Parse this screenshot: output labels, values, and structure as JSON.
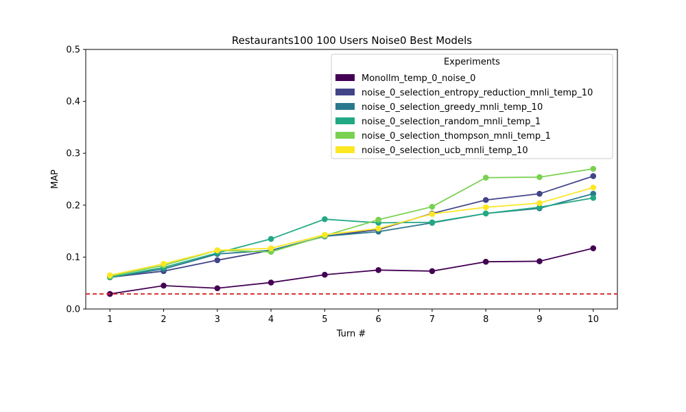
{
  "chart_data": {
    "type": "line",
    "title": "Restaurants100 100 Users Noise0 Best Models",
    "xlabel": "Turn #",
    "ylabel": "MAP",
    "x": [
      1,
      2,
      3,
      4,
      5,
      6,
      7,
      8,
      9,
      10
    ],
    "ylim": [
      0,
      0.5
    ],
    "yticks": [
      "0.0",
      "0.1",
      "0.2",
      "0.3",
      "0.4",
      "0.5"
    ],
    "grid": false,
    "legend": {
      "title": "Experiments",
      "placement": "top-right"
    },
    "baseline": {
      "value": 0.029,
      "color": "#d62728",
      "style": "dashed"
    },
    "series": [
      {
        "name": "Monollm_temp_0_noise_0",
        "color": "#440154",
        "values": [
          0.029,
          0.045,
          0.04,
          0.051,
          0.066,
          0.075,
          0.073,
          0.091,
          0.092,
          0.117
        ]
      },
      {
        "name": "noise_0_selection_entropy_reduction_mnli_temp_10",
        "color": "#414487",
        "values": [
          0.061,
          0.073,
          0.094,
          0.113,
          0.14,
          0.153,
          0.184,
          0.21,
          0.222,
          0.256
        ]
      },
      {
        "name": "noise_0_selection_greedy_mnli_temp_10",
        "color": "#2a788e",
        "values": [
          0.061,
          0.077,
          0.106,
          0.113,
          0.14,
          0.149,
          0.166,
          0.184,
          0.194,
          0.222
        ]
      },
      {
        "name": "noise_0_selection_random_mnli_temp_1",
        "color": "#22a884",
        "values": [
          0.061,
          0.08,
          0.108,
          0.135,
          0.173,
          0.166,
          0.167,
          0.184,
          0.196,
          0.214
        ]
      },
      {
        "name": "noise_0_selection_thompson_mnli_temp_1",
        "color": "#7ad151",
        "values": [
          0.063,
          0.084,
          0.113,
          0.11,
          0.141,
          0.172,
          0.197,
          0.253,
          0.254,
          0.27
        ]
      },
      {
        "name": "noise_0_selection_ucb_mnli_temp_10",
        "color": "#fde725",
        "values": [
          0.065,
          0.087,
          0.113,
          0.117,
          0.143,
          0.155,
          0.183,
          0.196,
          0.204,
          0.234
        ]
      }
    ]
  }
}
